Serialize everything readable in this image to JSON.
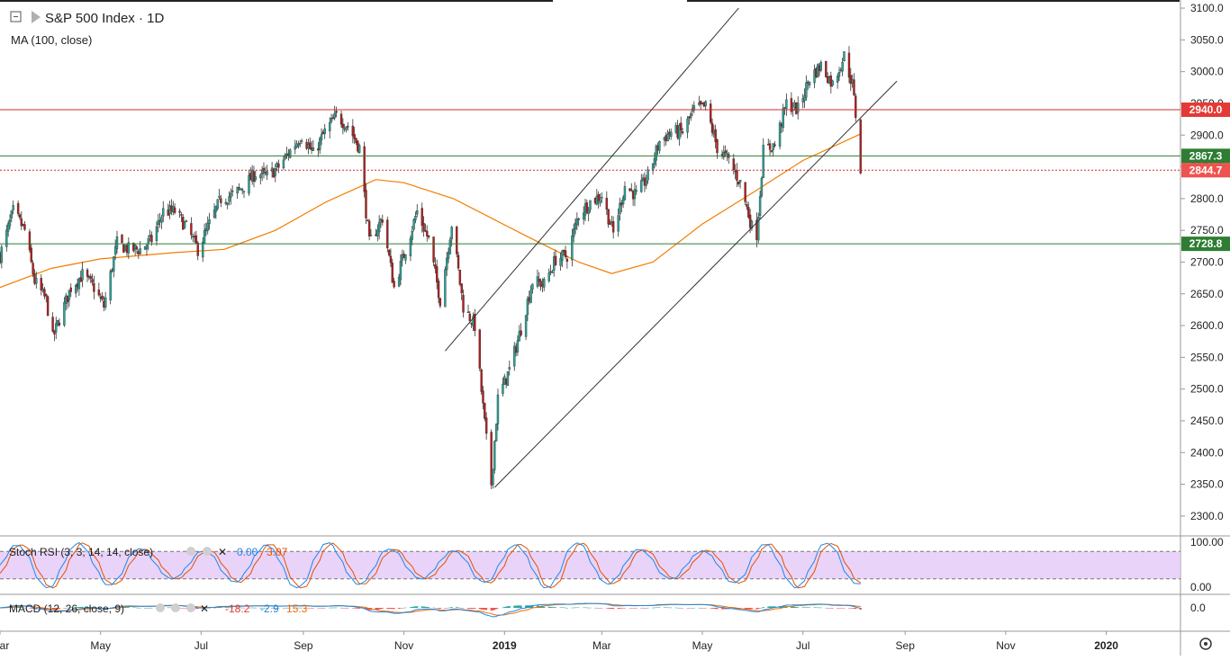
{
  "header": {
    "title": "S&P 500 Index · 1D",
    "ma_label": "MA (100, close)"
  },
  "colors": {
    "up": "#26a69a",
    "down": "#b71c1c",
    "ma": "#f57c00",
    "resistance": "#d32f2f",
    "support": "#2e7d32",
    "channel": "#333333",
    "stoch_k": "#1e88e5",
    "stoch_d": "#e65100",
    "stoch_band": "#e1c4f7",
    "macd_line": "#1e88e5",
    "macd_signal": "#ef6c00"
  },
  "indicators": {
    "stoch": {
      "label": "Stoch RSI (3, 3, 14, 14, close)",
      "v1": "0.00",
      "v2": "3.07",
      "axis_top": "100.00",
      "axis_bottom": "0.00",
      "upper": 80,
      "lower": 20
    },
    "macd": {
      "label": "MACD (12, 26, close, 9)",
      "v1": "-18.2",
      "v2": "-2.9",
      "v3": "15.3",
      "axis_zero": "0.0"
    }
  },
  "chart_data": {
    "type": "candlestick",
    "title": "S&P 500 Index · 1D",
    "y_ticks": [
      2300,
      2350,
      2400,
      2450,
      2500,
      2550,
      2600,
      2650,
      2700,
      2750,
      2800,
      2850,
      2900,
      2950,
      3000,
      3050,
      3100
    ],
    "ylim": [
      2280,
      3110
    ],
    "x_ticks": [
      "Mar",
      "May",
      "Jul",
      "Sep",
      "Nov",
      "2019",
      "Mar",
      "May",
      "Jul",
      "Sep",
      "Nov",
      "2020"
    ],
    "x_range": [
      "2018-03-01",
      "2020-02-15"
    ],
    "price_path": [
      [
        "2018-03-01",
        2710
      ],
      [
        "2018-03-09",
        2780
      ],
      [
        "2018-03-16",
        2750
      ],
      [
        "2018-03-22",
        2670
      ],
      [
        "2018-03-29",
        2640
      ],
      [
        "2018-04-02",
        2580
      ],
      [
        "2018-04-06",
        2610
      ],
      [
        "2018-04-13",
        2660
      ],
      [
        "2018-04-20",
        2680
      ],
      [
        "2018-04-27",
        2660
      ],
      [
        "2018-05-03",
        2630
      ],
      [
        "2018-05-11",
        2730
      ],
      [
        "2018-05-18",
        2720
      ],
      [
        "2018-05-25",
        2720
      ],
      [
        "2018-06-01",
        2735
      ],
      [
        "2018-06-08",
        2780
      ],
      [
        "2018-06-15",
        2780
      ],
      [
        "2018-06-22",
        2755
      ],
      [
        "2018-06-29",
        2720
      ],
      [
        "2018-07-06",
        2760
      ],
      [
        "2018-07-13",
        2800
      ],
      [
        "2018-07-20",
        2805
      ],
      [
        "2018-07-27",
        2820
      ],
      [
        "2018-08-03",
        2840
      ],
      [
        "2018-08-10",
        2835
      ],
      [
        "2018-08-17",
        2850
      ],
      [
        "2018-08-24",
        2875
      ],
      [
        "2018-08-31",
        2900
      ],
      [
        "2018-09-07",
        2870
      ],
      [
        "2018-09-14",
        2905
      ],
      [
        "2018-09-21",
        2930
      ],
      [
        "2018-09-28",
        2915
      ],
      [
        "2018-10-05",
        2880
      ],
      [
        "2018-10-11",
        2730
      ],
      [
        "2018-10-19",
        2770
      ],
      [
        "2018-10-26",
        2660
      ],
      [
        "2018-11-02",
        2720
      ],
      [
        "2018-11-09",
        2780
      ],
      [
        "2018-11-16",
        2735
      ],
      [
        "2018-11-23",
        2640
      ],
      [
        "2018-11-30",
        2760
      ],
      [
        "2018-12-07",
        2630
      ],
      [
        "2018-12-14",
        2600
      ],
      [
        "2018-12-21",
        2420
      ],
      [
        "2018-12-24",
        2351
      ],
      [
        "2018-12-28",
        2485
      ],
      [
        "2019-01-04",
        2530
      ],
      [
        "2019-01-11",
        2595
      ],
      [
        "2019-01-18",
        2670
      ],
      [
        "2019-01-25",
        2665
      ],
      [
        "2019-02-01",
        2705
      ],
      [
        "2019-02-08",
        2710
      ],
      [
        "2019-02-15",
        2775
      ],
      [
        "2019-02-22",
        2795
      ],
      [
        "2019-03-01",
        2805
      ],
      [
        "2019-03-08",
        2745
      ],
      [
        "2019-03-15",
        2820
      ],
      [
        "2019-03-22",
        2805
      ],
      [
        "2019-03-29",
        2835
      ],
      [
        "2019-04-05",
        2890
      ],
      [
        "2019-04-12",
        2905
      ],
      [
        "2019-04-19",
        2905
      ],
      [
        "2019-04-26",
        2940
      ],
      [
        "2019-05-03",
        2945
      ],
      [
        "2019-05-10",
        2880
      ],
      [
        "2019-05-17",
        2860
      ],
      [
        "2019-05-24",
        2825
      ],
      [
        "2019-05-31",
        2755
      ],
      [
        "2019-06-03",
        2745
      ],
      [
        "2019-06-07",
        2875
      ],
      [
        "2019-06-14",
        2885
      ],
      [
        "2019-06-21",
        2950
      ],
      [
        "2019-06-28",
        2940
      ],
      [
        "2019-07-05",
        2990
      ],
      [
        "2019-07-12",
        3010
      ],
      [
        "2019-07-19",
        2980
      ],
      [
        "2019-07-26",
        3025
      ],
      [
        "2019-07-31",
        2980
      ],
      [
        "2019-08-02",
        2932
      ],
      [
        "2019-08-05",
        2844.7
      ]
    ],
    "ma100_path": [
      [
        "2018-03-01",
        2660
      ],
      [
        "2018-04-01",
        2690
      ],
      [
        "2018-05-01",
        2705
      ],
      [
        "2018-06-15",
        2715
      ],
      [
        "2018-07-15",
        2720
      ],
      [
        "2018-08-15",
        2750
      ],
      [
        "2018-09-15",
        2795
      ],
      [
        "2018-10-15",
        2830
      ],
      [
        "2018-11-01",
        2825
      ],
      [
        "2018-12-01",
        2800
      ],
      [
        "2019-01-15",
        2740
      ],
      [
        "2019-02-15",
        2700
      ],
      [
        "2019-03-07",
        2682
      ],
      [
        "2019-04-01",
        2700
      ],
      [
        "2019-05-01",
        2760
      ],
      [
        "2019-06-01",
        2810
      ],
      [
        "2019-07-01",
        2860
      ],
      [
        "2019-08-05",
        2902
      ]
    ],
    "horizontal_levels": [
      {
        "value": 2940.0,
        "label": "2940.0",
        "style": "resistance"
      },
      {
        "value": 2867.3,
        "label": "2867.3",
        "style": "support"
      },
      {
        "value": 2844.7,
        "label": "2844.7",
        "style": "last"
      },
      {
        "value": 2728.8,
        "label": "2728.8",
        "style": "support"
      }
    ],
    "channel_lines": [
      {
        "from": [
          "2018-11-26",
          2560
        ],
        "to": [
          "2019-05-23",
          3100
        ]
      },
      {
        "from": [
          "2018-12-26",
          2345
        ],
        "to": [
          "2019-08-27",
          2985
        ]
      }
    ]
  }
}
